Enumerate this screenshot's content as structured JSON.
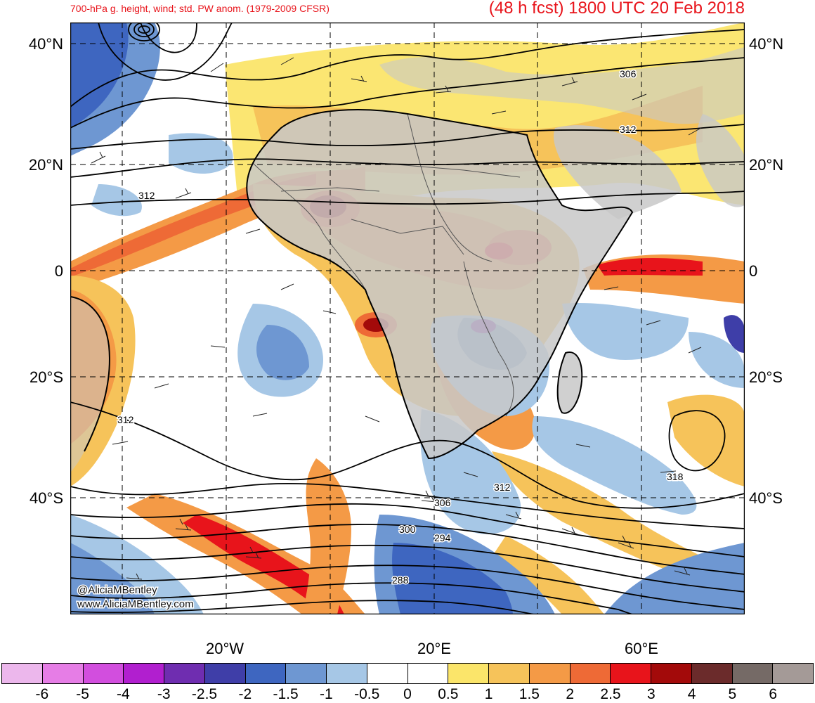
{
  "header": {
    "left_title": "700-hPa g. height, wind; std. PW anom. (1979-2009 CFSR)",
    "right_title": "(48 h fcst) 1800 UTC 20 Feb 2018"
  },
  "axes": {
    "lat_labels": [
      "40°N",
      "20°N",
      "0",
      "20°S",
      "40°S"
    ],
    "lon_labels": [
      "20°W",
      "20°E",
      "60°E"
    ]
  },
  "contour_labels": [
    "306",
    "312",
    "312",
    "312",
    "312",
    "318",
    "306",
    "300",
    "294",
    "288"
  ],
  "credits": [
    "@AliciaMBentley",
    "www.AliciaMBentley.com"
  ],
  "colorbar": {
    "colors": [
      "#ecb7ec",
      "#e67de6",
      "#d24ede",
      "#b11fcf",
      "#6f2db0",
      "#3f3ea8",
      "#3e66c0",
      "#6e97d2",
      "#a6c7e6",
      "#ffffff",
      "#ffffff",
      "#fbe56a",
      "#f6c35a",
      "#f49a46",
      "#ee6a36",
      "#e8141b",
      "#a30a0a",
      "#6b2b2b",
      "#756a66",
      "#a49a97"
    ],
    "tick_labels": [
      "-6",
      "-5",
      "-4",
      "-3",
      "-2.5",
      "-2",
      "-1.5",
      "-1",
      "-0.5",
      "0",
      "0.5",
      "1",
      "1.5",
      "2",
      "2.5",
      "3",
      "4",
      "5",
      "6"
    ]
  }
}
